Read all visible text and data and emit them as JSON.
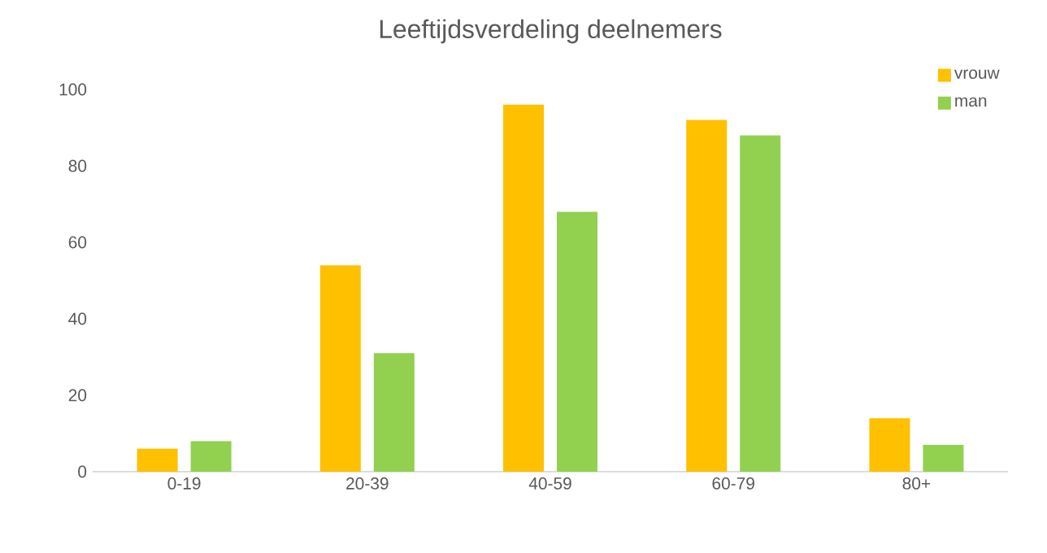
{
  "chart_data": {
    "type": "bar",
    "title": "Leeftijdsverdeling deelnemers",
    "categories": [
      "0-19",
      "20-39",
      "40-59",
      "60-79",
      "80+"
    ],
    "series": [
      {
        "name": "vrouw",
        "color": "#ffc000",
        "values": [
          6,
          54,
          96,
          92,
          14
        ]
      },
      {
        "name": "man",
        "color": "#92d050",
        "values": [
          8,
          31,
          68,
          88,
          7
        ]
      }
    ],
    "ylim": [
      0,
      100
    ],
    "yticks": [
      0,
      20,
      40,
      60,
      80,
      100
    ],
    "grid": false,
    "legend": "top right"
  }
}
